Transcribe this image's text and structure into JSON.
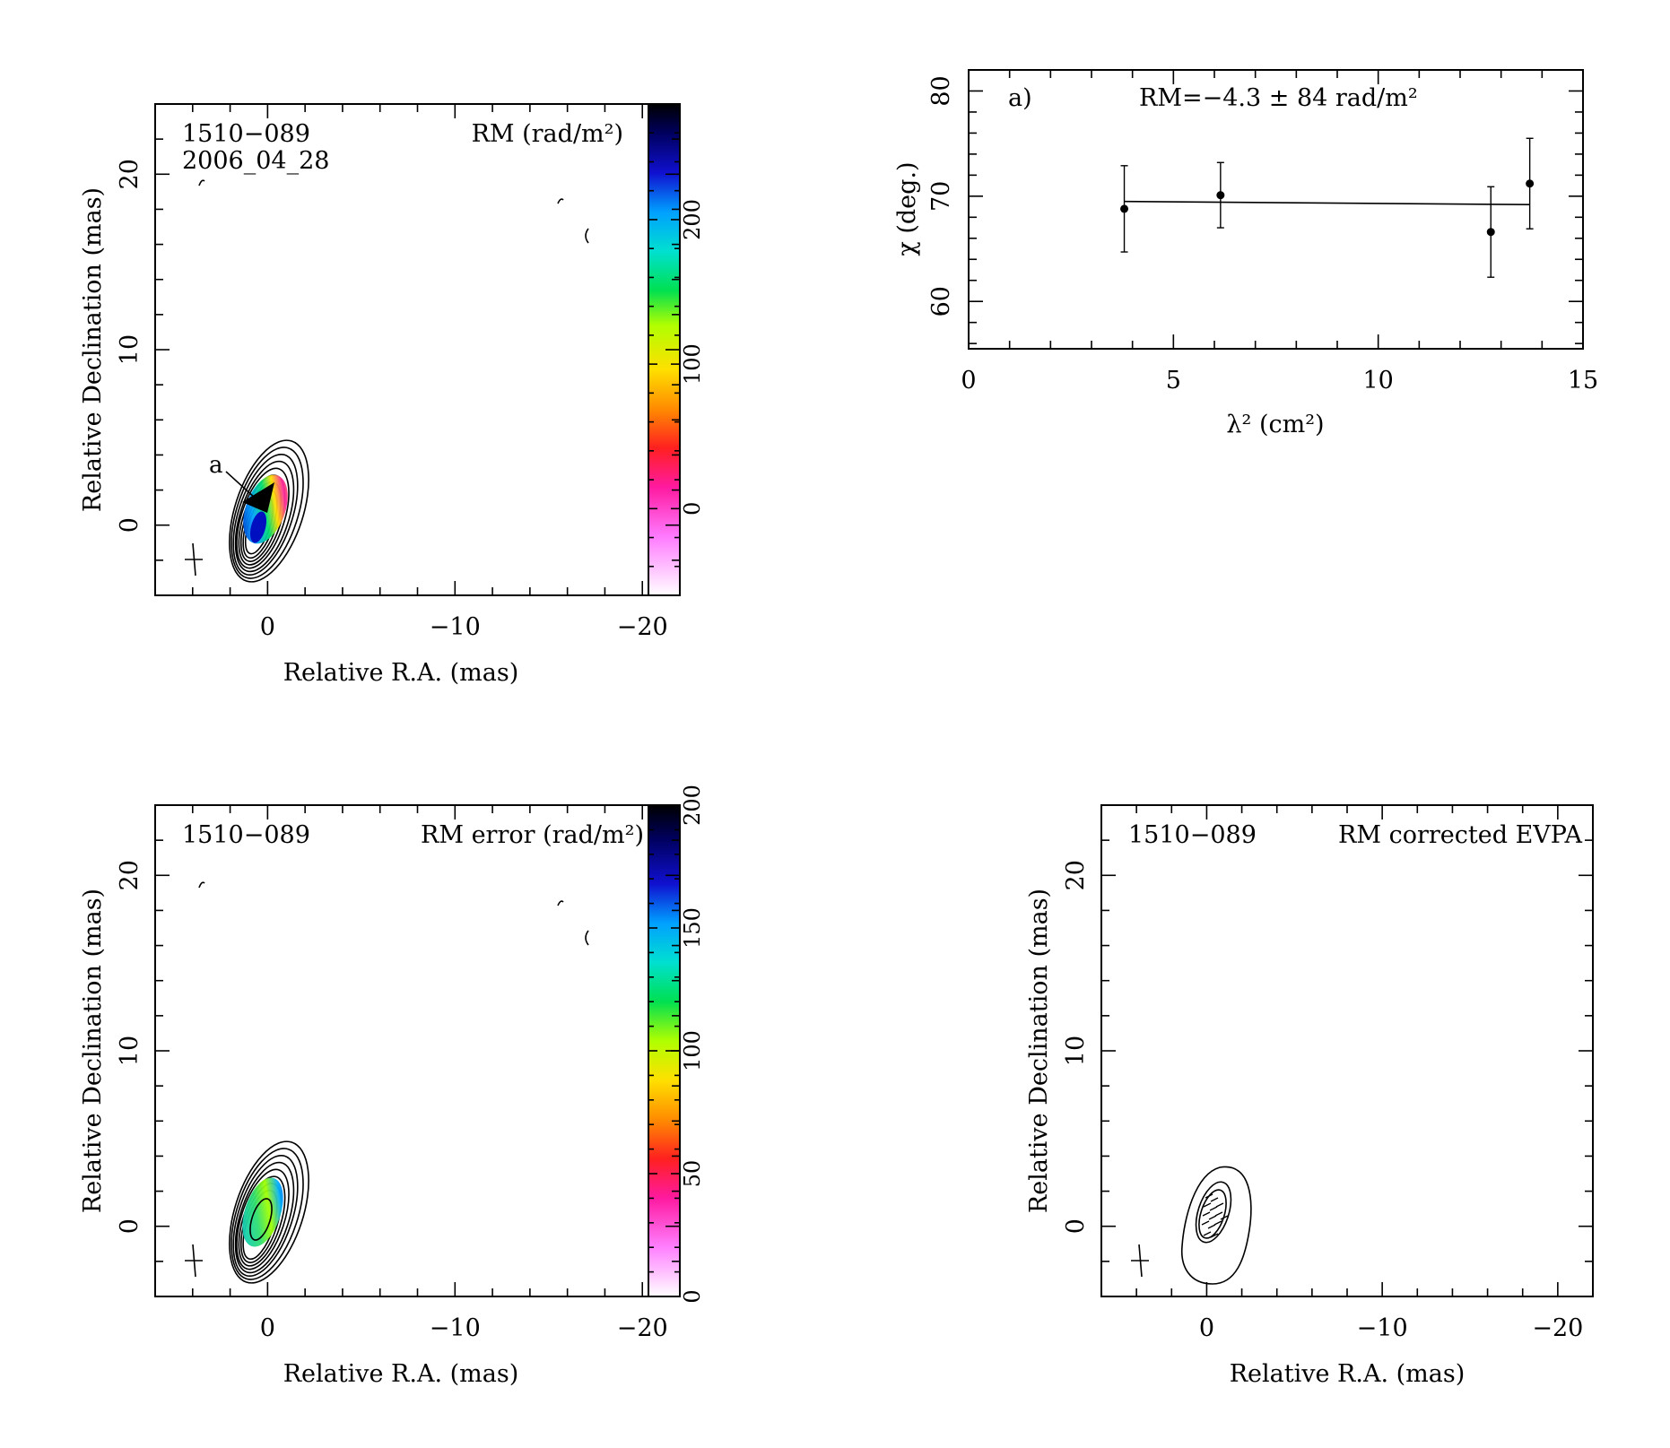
{
  "colors": {
    "axes": "#000000",
    "background": "#ffffff"
  },
  "panels": {
    "rm_map": {
      "source": "1510−089",
      "epoch": "2006_04_28",
      "title": "RM (rad/m²)",
      "xlabel": "Relative R.A. (mas)",
      "ylabel": "Relative Declination (mas)",
      "xticks": [
        "0",
        "−10",
        "−20"
      ],
      "yticks": [
        "0",
        "10",
        "20"
      ],
      "colorbar_ticks": [
        "0",
        "100",
        "200"
      ],
      "annotation": "a"
    },
    "rm_fit": {
      "label": "a)",
      "rm_text": "RM=−4.3 ± 84 rad/m²",
      "xlabel": "λ² (cm²)",
      "ylabel": "χ (deg.)",
      "xticks": [
        "0",
        "5",
        "10",
        "15"
      ],
      "yticks": [
        "60",
        "70",
        "80"
      ]
    },
    "rm_error_map": {
      "source": "1510−089",
      "title": "RM error (rad/m²)",
      "xlabel": "Relative R.A. (mas)",
      "ylabel": "Relative Declination (mas)",
      "xticks": [
        "0",
        "−10",
        "−20"
      ],
      "yticks": [
        "0",
        "10",
        "20"
      ],
      "colorbar_ticks": [
        "0",
        "50",
        "100",
        "150",
        "200"
      ]
    },
    "evpa_map": {
      "source": "1510−089",
      "title": "RM corrected EVPA",
      "xlabel": "Relative R.A. (mas)",
      "ylabel": "Relative Declination (mas)",
      "xticks": [
        "0",
        "−10",
        "−20"
      ],
      "yticks": [
        "0",
        "10",
        "20"
      ]
    }
  },
  "chart_data": [
    {
      "type": "heatmap",
      "title": "RM (rad/m²)",
      "xlabel": "Relative R.A. (mas)",
      "ylabel": "Relative Declination (mas)",
      "xlim": [
        6,
        -22
      ],
      "ylim": [
        -4,
        24
      ],
      "colorbar": {
        "label": "RM (rad/m²)",
        "range": [
          -60,
          280
        ],
        "ticks": [
          0,
          100,
          200
        ]
      },
      "core": {
        "ra": 0,
        "dec": 0
      },
      "annotations": [
        {
          "text": "a",
          "ra": 2.4,
          "dec": 3.6
        }
      ]
    },
    {
      "type": "scatter",
      "xlabel": "λ² (cm²)",
      "ylabel": "χ (deg.)",
      "xlim": [
        0,
        15
      ],
      "ylim": [
        55.5,
        82
      ],
      "x": [
        3.8,
        6.15,
        12.75,
        13.7
      ],
      "y": [
        68.8,
        70.1,
        66.6,
        71.2
      ],
      "yerr": [
        4.1,
        3.1,
        4.3,
        4.3
      ],
      "fit": {
        "x": [
          3.8,
          13.7
        ],
        "y": [
          69.5,
          69.2
        ]
      },
      "annotation": "RM=−4.3 ± 84 rad/m²"
    },
    {
      "type": "heatmap",
      "title": "RM error (rad/m²)",
      "xlabel": "Relative R.A. (mas)",
      "ylabel": "Relative Declination (mas)",
      "xlim": [
        6,
        -22
      ],
      "ylim": [
        -4,
        24
      ],
      "colorbar": {
        "label": "RM error (rad/m²)",
        "range": [
          0,
          200
        ],
        "ticks": [
          0,
          50,
          100,
          150,
          200
        ]
      },
      "core": {
        "ra": 0,
        "dec": 0
      }
    },
    {
      "type": "scatter",
      "title": "RM corrected EVPA",
      "xlabel": "Relative R.A. (mas)",
      "ylabel": "Relative Declination (mas)",
      "xlim": [
        6,
        -22
      ],
      "ylim": [
        -4,
        24
      ],
      "core": {
        "ra": 0,
        "dec": 0
      }
    }
  ]
}
